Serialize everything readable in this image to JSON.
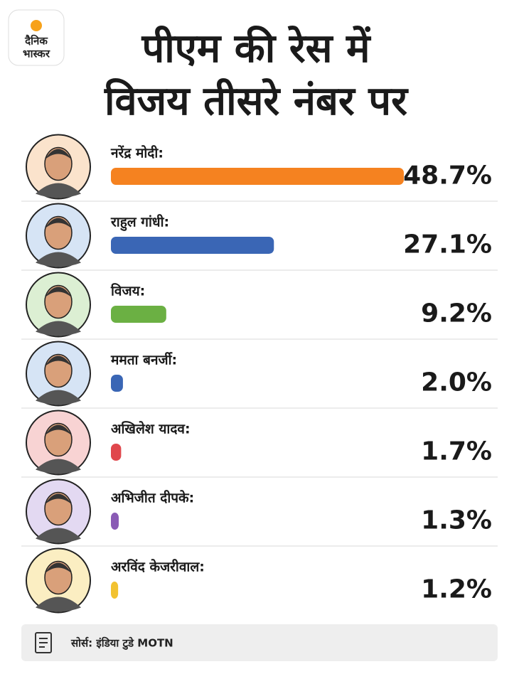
{
  "logo": [
    "दैनिक",
    "भास्कर"
  ],
  "chart_data": {
    "type": "bar",
    "title": [
      "पीएम की रेस में",
      "विजय तीसरे नंबर पर"
    ],
    "categories": [
      "नरेंद्र मोदी:",
      "राहुल गांधी:",
      "विजय:",
      "ममता बनर्जी:",
      "अखिलेश यादव:",
      "अभिजीत दीपके:",
      "अरविंद केजरीवाल:"
    ],
    "values": [
      48.7,
      27.1,
      9.2,
      2.0,
      1.7,
      1.3,
      1.2
    ],
    "value_labels": [
      "48.7%",
      "27.1%",
      "9.2%",
      "2.0%",
      "1.7%",
      "1.3%",
      "1.2%"
    ],
    "colors": [
      "#f58220",
      "#3a66b5",
      "#6bb043",
      "#3a66b5",
      "#e0474c",
      "#8a5bb5",
      "#f2c230"
    ],
    "source": "सोर्स: इंडिया टुडे MOTN"
  }
}
